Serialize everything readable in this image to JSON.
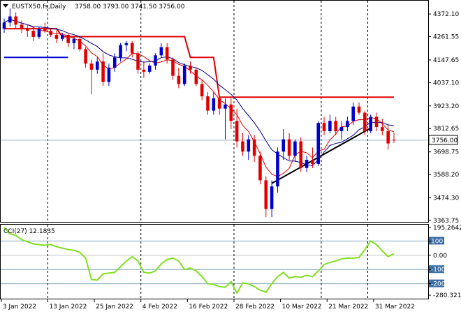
{
  "header": {
    "symbol": "EUSTX50.fs,Daily",
    "ohlc": "3758.00 3793.00 3741.50 3756.00"
  },
  "price_axis": {
    "ticks": [
      "4372.10",
      "4261.55",
      "4147.65",
      "4037.10",
      "3923.20",
      "3812.65",
      "3698.75",
      "3588.20",
      "3474.30",
      "3363.75"
    ],
    "current_label": "3756.00"
  },
  "cci": {
    "label": "CCI(27) 12.1835",
    "ticks": [
      "195.2642",
      "100",
      "0.00",
      "-100",
      "-200",
      "-280.3219"
    ]
  },
  "date_axis": [
    "3 Jan 2022",
    "13 Jan 2022",
    "25 Jan 2022",
    "4 Feb 2022",
    "16 Feb 2022",
    "28 Feb 2022",
    "10 Mar 2022",
    "21 Mar 2022",
    "31 Mar 2022"
  ],
  "colors": {
    "bull": "#0000CC",
    "bear": "#E00000",
    "fast_ma": "#E00000",
    "slow_ma": "#00008B",
    "resistance": "#E00000",
    "support": "#0000CC",
    "trendline": "#000000",
    "cci": "#80E020",
    "grid_vline": "#000000",
    "level_line": "#7FA7C0"
  },
  "chart_data": [
    {
      "type": "candlestick",
      "title": "EUSTX50.fs,Daily",
      "ylim": [
        3363.75,
        4400
      ],
      "x": [
        "3 Jan 2022",
        "4 Jan 2022",
        "5 Jan 2022",
        "6 Jan 2022",
        "7 Jan 2022",
        "10 Jan 2022",
        "11 Jan 2022",
        "12 Jan 2022",
        "13 Jan 2022",
        "14 Jan 2022",
        "17 Jan 2022",
        "18 Jan 2022",
        "19 Jan 2022",
        "20 Jan 2022",
        "21 Jan 2022",
        "24 Jan 2022",
        "25 Jan 2022",
        "26 Jan 2022",
        "27 Jan 2022",
        "28 Jan 2022",
        "31 Jan 2022",
        "1 Feb 2022",
        "2 Feb 2022",
        "3 Feb 2022",
        "4 Feb 2022",
        "7 Feb 2022",
        "8 Feb 2022",
        "9 Feb 2022",
        "10 Feb 2022",
        "11 Feb 2022",
        "14 Feb 2022",
        "15 Feb 2022",
        "16 Feb 2022",
        "17 Feb 2022",
        "18 Feb 2022",
        "21 Feb 2022",
        "22 Feb 2022",
        "23 Feb 2022",
        "24 Feb 2022",
        "25 Feb 2022",
        "28 Feb 2022",
        "1 Mar 2022",
        "2 Mar 2022",
        "3 Mar 2022",
        "4 Mar 2022",
        "7 Mar 2022",
        "8 Mar 2022",
        "9 Mar 2022",
        "10 Mar 2022",
        "11 Mar 2022",
        "14 Mar 2022",
        "15 Mar 2022",
        "16 Mar 2022",
        "17 Mar 2022",
        "18 Mar 2022",
        "21 Mar 2022",
        "22 Mar 2022",
        "23 Mar 2022",
        "24 Mar 2022",
        "25 Mar 2022",
        "28 Mar 2022",
        "29 Mar 2022",
        "30 Mar 2022",
        "31 Mar 2022",
        "1 Apr 2022",
        "4 Apr 2022",
        "5 Apr 2022",
        "6 Apr 2022"
      ],
      "ohlc": [
        [
          4300,
          4350,
          4280,
          4330
        ],
        [
          4330,
          4400,
          4310,
          4360
        ],
        [
          4360,
          4380,
          4300,
          4320
        ],
        [
          4320,
          4340,
          4280,
          4300
        ],
        [
          4300,
          4320,
          4260,
          4290
        ],
        [
          4290,
          4310,
          4240,
          4260
        ],
        [
          4260,
          4310,
          4250,
          4300
        ],
        [
          4300,
          4330,
          4280,
          4290
        ],
        [
          4290,
          4300,
          4260,
          4270
        ],
        [
          4270,
          4290,
          4230,
          4250
        ],
        [
          4250,
          4280,
          4240,
          4270
        ],
        [
          4270,
          4280,
          4210,
          4230
        ],
        [
          4230,
          4260,
          4200,
          4250
        ],
        [
          4250,
          4260,
          4190,
          4200
        ],
        [
          4200,
          4210,
          4110,
          4130
        ],
        [
          4130,
          4150,
          3980,
          4100
        ],
        [
          4100,
          4160,
          4080,
          4140
        ],
        [
          4140,
          4180,
          4020,
          4040
        ],
        [
          4040,
          4130,
          4020,
          4110
        ],
        [
          4110,
          4180,
          4090,
          4160
        ],
        [
          4160,
          4230,
          4140,
          4220
        ],
        [
          4220,
          4240,
          4190,
          4230
        ],
        [
          4230,
          4240,
          4160,
          4180
        ],
        [
          4180,
          4190,
          4080,
          4100
        ],
        [
          4100,
          4140,
          4060,
          4090
        ],
        [
          4090,
          4130,
          4080,
          4120
        ],
        [
          4120,
          4180,
          4100,
          4170
        ],
        [
          4170,
          4230,
          4160,
          4210
        ],
        [
          4210,
          4230,
          4130,
          4150
        ],
        [
          4150,
          4160,
          4050,
          4070
        ],
        [
          4070,
          4110,
          4010,
          4030
        ],
        [
          4030,
          4130,
          4020,
          4120
        ],
        [
          4120,
          4140,
          4080,
          4100
        ],
        [
          4100,
          4110,
          4020,
          4030
        ],
        [
          4030,
          4050,
          3950,
          3970
        ],
        [
          3970,
          3990,
          3880,
          3900
        ],
        [
          3900,
          3990,
          3880,
          3960
        ],
        [
          3960,
          3970,
          3880,
          3910
        ],
        [
          3910,
          3960,
          3760,
          3930
        ],
        [
          3930,
          3960,
          3810,
          3850
        ],
        [
          3850,
          3910,
          3720,
          3750
        ],
        [
          3750,
          3790,
          3680,
          3700
        ],
        [
          3700,
          3780,
          3660,
          3760
        ],
        [
          3760,
          3780,
          3650,
          3680
        ],
        [
          3680,
          3700,
          3540,
          3560
        ],
        [
          3560,
          3580,
          3380,
          3420
        ],
        [
          3420,
          3560,
          3380,
          3530
        ],
        [
          3530,
          3720,
          3500,
          3700
        ],
        [
          3700,
          3810,
          3660,
          3760
        ],
        [
          3760,
          3790,
          3660,
          3680
        ],
        [
          3680,
          3760,
          3650,
          3750
        ],
        [
          3750,
          3770,
          3600,
          3620
        ],
        [
          3620,
          3680,
          3600,
          3660
        ],
        [
          3660,
          3720,
          3620,
          3640
        ],
        [
          3640,
          3850,
          3630,
          3840
        ],
        [
          3840,
          3870,
          3780,
          3800
        ],
        [
          3800,
          3880,
          3790,
          3850
        ],
        [
          3850,
          3870,
          3780,
          3800
        ],
        [
          3800,
          3850,
          3760,
          3820
        ],
        [
          3820,
          3870,
          3800,
          3850
        ],
        [
          3850,
          3940,
          3830,
          3920
        ],
        [
          3920,
          3940,
          3880,
          3890
        ],
        [
          3890,
          3900,
          3780,
          3800
        ],
        [
          3800,
          3880,
          3790,
          3870
        ],
        [
          3870,
          3890,
          3800,
          3820
        ],
        [
          3820,
          3860,
          3780,
          3800
        ],
        [
          3800,
          3830,
          3710,
          3740
        ],
        [
          3758,
          3793,
          3741.5,
          3756
        ]
      ],
      "overlays": {
        "resistance_level": [
          {
            "from": "3 Jan 2022",
            "to": "14 Jan 2022",
            "value": 4300
          },
          {
            "from": "17 Jan 2022",
            "to": "15 Feb 2022",
            "value": 4261.55
          },
          {
            "from": "16 Feb 2022",
            "to": "22 Feb 2022",
            "value": 4160
          },
          {
            "from": "23 Feb 2022",
            "to": "6 Apr 2022",
            "value": 3966
          }
        ],
        "support_level": [
          {
            "from": "3 Jan 2022",
            "to": "18 Jan 2022",
            "value": 4160
          }
        ],
        "trendline": {
          "from": [
            "8 Mar 2022",
            3545
          ],
          "to": [
            "31 Mar 2022",
            3815
          ]
        }
      }
    },
    {
      "type": "line",
      "title": "CCI(27) 12.1835",
      "ylim": [
        -280.3219,
        195.2642
      ],
      "levels": [
        100,
        0,
        -100,
        -200
      ],
      "values": [
        195,
        150,
        140,
        110,
        95,
        80,
        75,
        70,
        75,
        60,
        50,
        40,
        35,
        20,
        -20,
        -170,
        -175,
        -130,
        -125,
        -120,
        -80,
        -40,
        -10,
        -40,
        -120,
        -125,
        -110,
        -60,
        -30,
        -20,
        -40,
        -100,
        -90,
        -110,
        -150,
        -200,
        -205,
        -220,
        -225,
        -185,
        -265,
        -195,
        -200,
        -220,
        -245,
        -260,
        -200,
        -150,
        -120,
        -160,
        -150,
        -155,
        -140,
        -150,
        -110,
        -65,
        -50,
        -40,
        -25,
        -20,
        -20,
        -15,
        40,
        100,
        75,
        30,
        -10,
        12.1835
      ]
    }
  ]
}
